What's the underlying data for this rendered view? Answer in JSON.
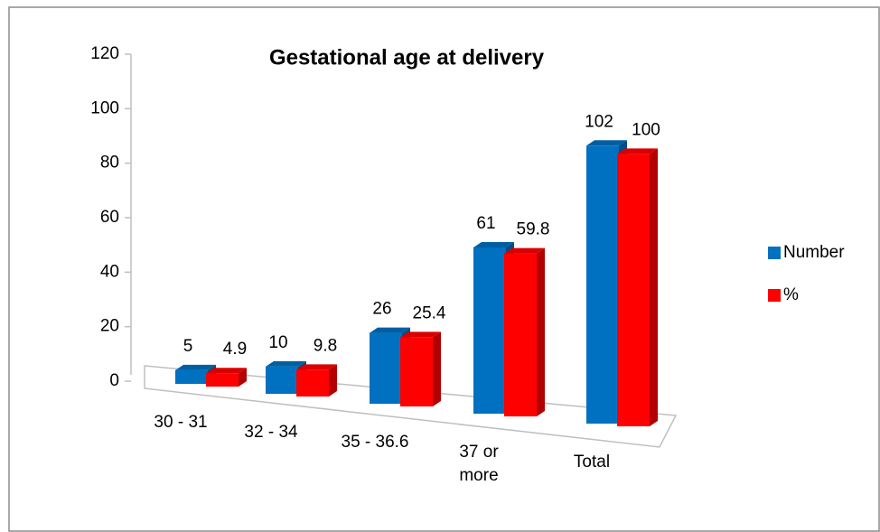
{
  "chart_data": {
    "type": "bar3d",
    "title": "Gestational age at delivery",
    "categories": [
      "30 - 31",
      "32 - 34",
      "35 - 36.6",
      "37 or more",
      "Total"
    ],
    "series": [
      {
        "name": "Number",
        "color": "#0070c0",
        "values": [
          5,
          10,
          26,
          61,
          102
        ]
      },
      {
        "name": "%",
        "color": "#ff0000",
        "values": [
          4.9,
          9.8,
          25.4,
          59.8,
          100
        ]
      }
    ],
    "ylim": [
      0,
      120
    ],
    "yticks": [
      0,
      20,
      40,
      60,
      80,
      100,
      120
    ],
    "legend": "right"
  }
}
